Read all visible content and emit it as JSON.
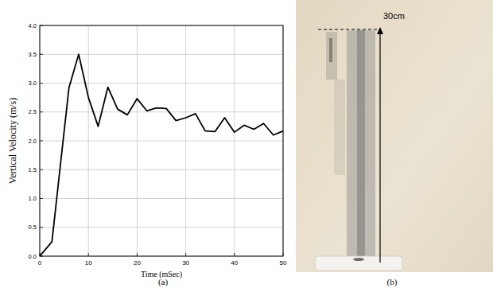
{
  "chart_data": {
    "type": "line",
    "x_label": "Time (mSec)",
    "y_label": "Vertical Velocity (m/s)",
    "x": [
      0,
      2.5,
      6,
      8,
      10,
      12,
      14,
      16,
      18,
      20,
      22,
      24,
      26,
      28,
      30,
      32,
      34,
      36,
      38,
      40,
      42,
      44,
      46,
      48,
      50
    ],
    "values": [
      0.0,
      0.25,
      2.92,
      3.5,
      2.75,
      2.25,
      2.93,
      2.55,
      2.45,
      2.73,
      2.52,
      2.57,
      2.56,
      2.35,
      2.4,
      2.47,
      2.17,
      2.16,
      2.4,
      2.15,
      2.27,
      2.2,
      2.3,
      2.1,
      2.17
    ],
    "color": "#000000",
    "xlim": [
      0,
      50
    ],
    "xticks": [
      0,
      10,
      20,
      30,
      40,
      50
    ],
    "ylim": [
      0,
      4
    ],
    "yticks": [
      {
        "value": 0,
        "label": "0.0"
      },
      {
        "value": 0.5,
        "label": "0.5"
      },
      {
        "value": 1,
        "label": "1.0"
      },
      {
        "value": 1.5,
        "label": "1.5"
      },
      {
        "value": 2,
        "label": "2.0"
      },
      {
        "value": 2.5,
        "label": "2.5"
      },
      {
        "value": 3,
        "label": "3.0"
      },
      {
        "value": 3.5,
        "label": "3.5"
      },
      {
        "value": 4,
        "label": "4.0"
      }
    ],
    "grid": true
  },
  "figure": {
    "panel_labels": [
      "(a)",
      "(b)"
    ],
    "photo": {
      "annotation": "30cm"
    }
  }
}
